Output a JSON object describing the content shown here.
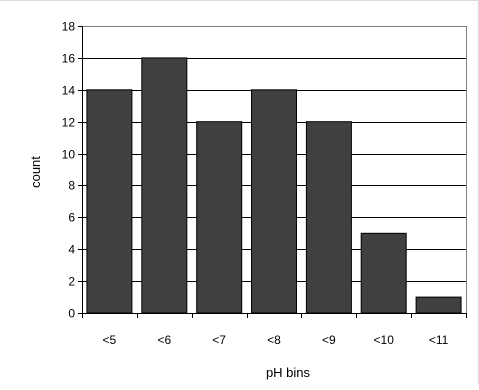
{
  "chart_data": {
    "type": "bar",
    "title": "",
    "xlabel": "pH bins",
    "ylabel": "count",
    "categories": [
      "<5",
      "<6",
      "<7",
      "<8",
      "<9",
      "<10",
      "<11"
    ],
    "values": [
      14,
      16,
      12,
      14,
      12,
      5,
      1
    ],
    "ylim": [
      0,
      18
    ],
    "y_ticks": [
      0,
      2,
      4,
      6,
      8,
      10,
      12,
      14,
      16,
      18
    ],
    "grid": true,
    "legend": "none",
    "colors": {
      "bar_fill": "#404040",
      "bar_stroke": "#000000",
      "gridline": "#000000",
      "plot_border": "#808080",
      "outer_border": "#d9d9d9"
    }
  }
}
